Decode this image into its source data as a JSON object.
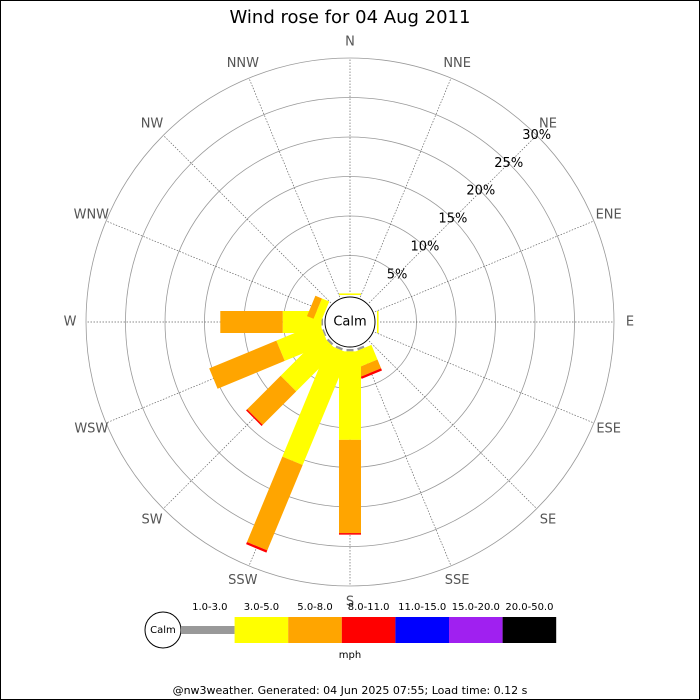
{
  "chart_data": {
    "type": "windrose",
    "title": "Wind rose for 04 Aug 2011",
    "calm_label": "Calm",
    "directions": [
      "N",
      "NNE",
      "NE",
      "ENE",
      "E",
      "ESE",
      "SE",
      "SSE",
      "S",
      "SSW",
      "SW",
      "WSW",
      "W",
      "WNW",
      "NW",
      "NNW"
    ],
    "rlim": [
      0,
      30
    ],
    "rticks": [
      {
        "value": 5,
        "label": "5%"
      },
      {
        "value": 10,
        "label": "10%"
      },
      {
        "value": 15,
        "label": "15%"
      },
      {
        "value": 20,
        "label": "20%"
      },
      {
        "value": 25,
        "label": "25%"
      },
      {
        "value": 30,
        "label": "30%"
      }
    ],
    "series": [
      {
        "name": "1.0-3.0",
        "color": "#999999",
        "values": [
          0,
          0,
          0,
          0,
          0,
          0,
          0,
          0.3,
          0.3,
          0.3,
          0.3,
          0.2,
          0.2,
          0,
          0,
          0
        ]
      },
      {
        "name": "3.0-5.0",
        "color": "#ffff00",
        "values": [
          0.2,
          0,
          0,
          0,
          0.2,
          0,
          0,
          2.0,
          11.2,
          15.3,
          7.3,
          5.9,
          4.9,
          1.0,
          0,
          0
        ]
      },
      {
        "name": "5.0-8.0",
        "color": "#ffa500",
        "values": [
          0,
          0,
          0,
          0,
          0,
          0,
          0,
          1.2,
          11.8,
          11.7,
          6.0,
          9.2,
          7.9,
          0.9,
          0,
          0
        ]
      },
      {
        "name": "8.0-11.0",
        "color": "#ff0000",
        "values": [
          0,
          0,
          0,
          0,
          0,
          0,
          0,
          0.3,
          0.2,
          0.3,
          0.2,
          0,
          0,
          0,
          0,
          0
        ]
      },
      {
        "name": "11.0-15.0",
        "color": "#0000ff",
        "values": [
          0,
          0,
          0,
          0,
          0,
          0,
          0,
          0,
          0,
          0,
          0,
          0,
          0,
          0,
          0,
          0
        ]
      },
      {
        "name": "15.0-20.0",
        "color": "#a020f0",
        "values": [
          0,
          0,
          0,
          0,
          0,
          0,
          0,
          0,
          0,
          0,
          0,
          0,
          0,
          0,
          0,
          0
        ]
      },
      {
        "name": "20.0-50.0",
        "color": "#000000",
        "values": [
          0,
          0,
          0,
          0,
          0,
          0,
          0,
          0,
          0,
          0,
          0,
          0,
          0,
          0,
          0,
          0
        ]
      }
    ],
    "legend_unit": "mph",
    "footer": "@nw3weather. Generated: 04 Jun 2025 07:55; Load time: 0.12 s"
  }
}
